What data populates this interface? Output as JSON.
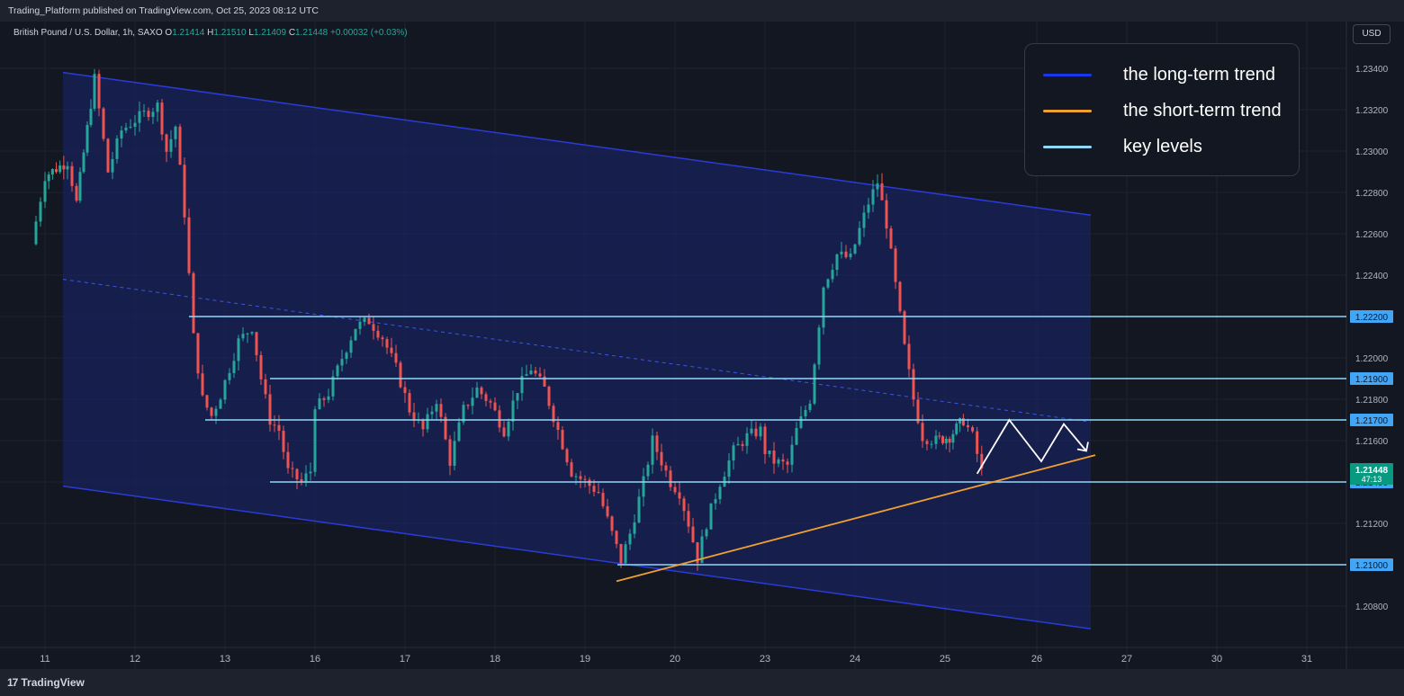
{
  "header": {
    "published": "Trading_Platform published on TradingView.com, Oct 25, 2023 08:12 UTC"
  },
  "footer": {
    "brand": "TradingView",
    "logo_glyph": "17"
  },
  "currency_label": "USD",
  "legend": {
    "items": [
      {
        "label": "the long-term trend",
        "color": "#1838f0"
      },
      {
        "label": "the short-term trend",
        "color": "#f0a030"
      },
      {
        "label": "key levels",
        "color": "#8fd8f8"
      }
    ]
  },
  "chart_data": {
    "type": "candlestick",
    "symbol": "British Pound / U.S. Dollar, 1h, SAXO",
    "ohlc_text": {
      "O": "1.21414",
      "H": "1.21510",
      "L": "1.21409",
      "C": "1.21448",
      "change": "+0.00032 (+0.03%)"
    },
    "x_tick_labels": [
      "11",
      "12",
      "13",
      "16",
      "17",
      "18",
      "19",
      "20",
      "23",
      "24",
      "25",
      "26",
      "27",
      "30",
      "31"
    ],
    "y_tick_labels": [
      "1.23400",
      "1.23200",
      "1.23000",
      "1.22800",
      "1.22600",
      "1.22400",
      "1.22200",
      "1.22000",
      "1.21800",
      "1.21600",
      "1.21400",
      "1.21200",
      "1.21000",
      "1.20800"
    ],
    "ylim": [
      1.2068,
      1.2352
    ],
    "key_levels": [
      1.222,
      1.219,
      1.217,
      1.214,
      1.21
    ],
    "level_labels": [
      "1.22200",
      "1.21900",
      "1.21700",
      "1.21400",
      "1.21000"
    ],
    "current_price": {
      "price": "1.21448",
      "countdown": "47:13",
      "value": 1.21448
    },
    "channel": {
      "upper": [
        [
          11.2,
          1.2338
        ],
        [
          26.6,
          1.2269
        ]
      ],
      "lower": [
        [
          11.2,
          1.2138
        ],
        [
          26.6,
          1.2069
        ]
      ],
      "mid": [
        [
          11.2,
          1.2238
        ],
        [
          26.6,
          1.2169
        ]
      ]
    },
    "short_term_trend": [
      [
        19.35,
        1.2092
      ],
      [
        26.65,
        1.2153
      ]
    ],
    "projection": [
      [
        25.35,
        1.2144
      ],
      [
        25.7,
        1.217
      ],
      [
        26.05,
        1.215
      ],
      [
        26.3,
        1.2168
      ],
      [
        26.55,
        1.2155
      ]
    ],
    "path": [
      [
        10.85,
        1.2255
      ],
      [
        11.0,
        1.2288
      ],
      [
        11.25,
        1.2295
      ],
      [
        11.35,
        1.2275
      ],
      [
        11.55,
        1.2335
      ],
      [
        11.7,
        1.229
      ],
      [
        11.85,
        1.231
      ],
      [
        12.0,
        1.2315
      ],
      [
        12.1,
        1.2318
      ],
      [
        12.25,
        1.2322
      ],
      [
        12.35,
        1.23
      ],
      [
        12.45,
        1.2312
      ],
      [
        12.55,
        1.227
      ],
      [
        12.65,
        1.221
      ],
      [
        12.75,
        1.218
      ],
      [
        12.85,
        1.2172
      ],
      [
        12.95,
        1.2182
      ],
      [
        13.05,
        1.2195
      ],
      [
        13.15,
        1.2208
      ],
      [
        13.3,
        1.2215
      ],
      [
        13.4,
        1.219
      ],
      [
        13.5,
        1.217
      ],
      [
        13.6,
        1.2165
      ],
      [
        13.7,
        1.2145
      ],
      [
        13.85,
        1.214
      ],
      [
        14.1,
        1.2148
      ],
      [
        15.6,
        1.2155
      ],
      [
        15.85,
        1.2162
      ],
      [
        16.0,
        1.2175
      ],
      [
        16.15,
        1.2183
      ],
      [
        16.3,
        1.22
      ],
      [
        16.45,
        1.2215
      ],
      [
        16.6,
        1.2218
      ],
      [
        16.75,
        1.221
      ],
      [
        16.9,
        1.2195
      ],
      [
        17.05,
        1.2175
      ],
      [
        17.2,
        1.2165
      ],
      [
        17.35,
        1.218
      ],
      [
        17.5,
        1.215
      ],
      [
        17.65,
        1.2175
      ],
      [
        17.8,
        1.2185
      ],
      [
        17.95,
        1.2178
      ],
      [
        18.1,
        1.2165
      ],
      [
        18.25,
        1.2185
      ],
      [
        18.4,
        1.2195
      ],
      [
        18.55,
        1.2185
      ],
      [
        18.7,
        1.2165
      ],
      [
        18.85,
        1.2145
      ],
      [
        19.0,
        1.214
      ],
      [
        19.15,
        1.2135
      ],
      [
        19.3,
        1.2115
      ],
      [
        19.4,
        1.2102
      ],
      [
        19.5,
        1.2115
      ],
      [
        19.65,
        1.214
      ],
      [
        19.75,
        1.216
      ],
      [
        19.85,
        1.215
      ],
      [
        19.95,
        1.214
      ],
      [
        20.05,
        1.2135
      ],
      [
        20.15,
        1.212
      ],
      [
        20.25,
        1.2103
      ],
      [
        20.35,
        1.212
      ],
      [
        20.5,
        1.214
      ],
      [
        20.65,
        1.2155
      ],
      [
        20.8,
        1.2162
      ],
      [
        20.95,
        1.2165
      ],
      [
        23.0,
        1.2155
      ],
      [
        23.1,
        1.215
      ],
      [
        23.25,
        1.2148
      ],
      [
        23.35,
        1.2165
      ],
      [
        23.5,
        1.218
      ],
      [
        23.65,
        1.2235
      ],
      [
        23.8,
        1.225
      ],
      [
        23.95,
        1.2248
      ],
      [
        24.05,
        1.2262
      ],
      [
        24.15,
        1.2275
      ],
      [
        24.25,
        1.2285
      ],
      [
        24.35,
        1.2265
      ],
      [
        24.45,
        1.2235
      ],
      [
        24.55,
        1.2205
      ],
      [
        24.65,
        1.218
      ],
      [
        24.75,
        1.2162
      ],
      [
        24.9,
        1.216
      ],
      [
        25.05,
        1.2162
      ],
      [
        25.2,
        1.217
      ],
      [
        25.3,
        1.2162
      ],
      [
        25.4,
        1.2145
      ]
    ],
    "grid": true,
    "legend_position": "top-right"
  }
}
